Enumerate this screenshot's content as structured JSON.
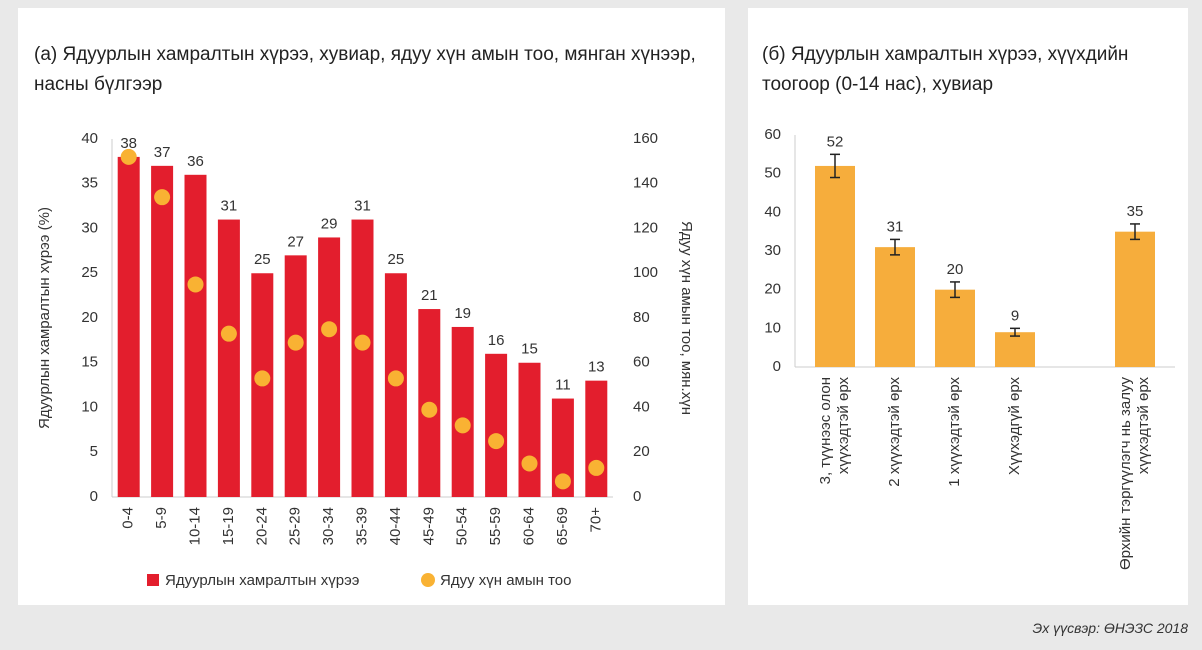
{
  "chart_data": [
    {
      "type": "bar",
      "title": "(а) Ядуурлын хамралтын хүрээ, хувиар, ядуу хүн амын тоо, мянган хүнээр, насны бүлгээр",
      "ylabel": "Ядуурлын хамралтын хүрээ (%)",
      "y2label": "Ядуу хүн амын тоо, мян.хүн",
      "categories": [
        "0-4",
        "5-9",
        "10-14",
        "15-19",
        "20-24",
        "25-29",
        "30-34",
        "35-39",
        "40-44",
        "45-49",
        "50-54",
        "55-59",
        "60-64",
        "65-69",
        "70+"
      ],
      "series": [
        {
          "name": "Ядуурлын хамралтын хүрээ",
          "type": "bar",
          "color": "#e31e2d",
          "values": [
            38,
            37,
            36,
            31,
            25,
            27,
            29,
            31,
            25,
            21,
            19,
            16,
            15,
            11,
            13
          ]
        },
        {
          "name": "Ядуу хүн амын тоо",
          "type": "dot",
          "axis": "y2",
          "color": "#f9b233",
          "values": [
            152,
            134,
            95,
            73,
            53,
            69,
            75,
            69,
            53,
            39,
            32,
            25,
            15,
            7,
            13
          ]
        }
      ],
      "ylim": [
        0,
        40
      ],
      "yticks": [
        0,
        5,
        10,
        15,
        20,
        25,
        30,
        35,
        40
      ],
      "y2lim": [
        0,
        160
      ],
      "y2ticks": [
        0,
        20,
        40,
        60,
        80,
        100,
        120,
        140,
        160
      ],
      "legend": "bottom"
    },
    {
      "type": "bar",
      "title": "(б) Ядуурлын хамралтын хүрээ, хүүхдийн тоогоор (0-14 нас), хувиар",
      "categories": [
        [
          "3, түүнээс олон",
          "хүүхэдтэй өрх"
        ],
        [
          "2 хүүхэдтэй өрх"
        ],
        [
          "1 хүүхэдтэй өрх"
        ],
        [
          "Хүүхэдгүй өрх"
        ],
        null,
        [
          "Өрхийн тэргүүлэгч нь залуу",
          "хүүхэдтэй өрх"
        ]
      ],
      "values": [
        52,
        31,
        20,
        9,
        null,
        35
      ],
      "errors": [
        3,
        2,
        2,
        1,
        null,
        2
      ],
      "color": "#f6ad3c",
      "ylim": [
        0,
        60
      ],
      "yticks": [
        0,
        10,
        20,
        30,
        40,
        50,
        60
      ]
    }
  ],
  "source": "Эх үүсвэр: ӨНЭЗС 2018"
}
